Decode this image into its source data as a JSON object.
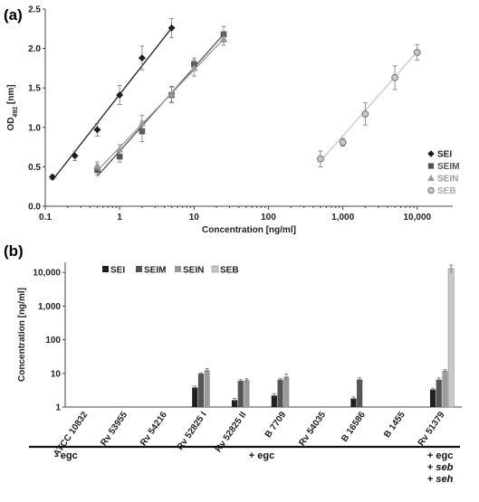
{
  "panel_labels": {
    "a": "(a)",
    "b": "(b)"
  },
  "colors": {
    "SEI": "#1f1f1f",
    "SEIM": "#555555",
    "SEIN": "#9a9a9a",
    "SEB": "#c8c8c8"
  },
  "chart_data": [
    {
      "type": "scatter",
      "panel": "(a)",
      "xlabel": "Concentration [ng/ml]",
      "ylabel_main": "OD",
      "ylabel_sub": "492",
      "ylabel_unit": " [nm]",
      "x_scale": "log",
      "xlim": [
        0.1,
        30000
      ],
      "ylim": [
        0,
        2.5
      ],
      "x_ticks": [
        0.1,
        1,
        10,
        100,
        1000,
        10000
      ],
      "x_tick_labels": [
        "0.1",
        "1",
        "10",
        "100",
        "1,000",
        "10,000"
      ],
      "y_ticks": [
        0.0,
        0.5,
        1.0,
        1.5,
        2.0,
        2.5
      ],
      "y_tick_labels": [
        "0.0",
        "0.5",
        "1.0",
        "1.5",
        "2.0",
        "2.5"
      ],
      "legend_position": "right",
      "series": [
        {
          "name": "SEI",
          "marker": "diamond",
          "x": [
            0.125,
            0.25,
            0.5,
            1,
            2,
            5
          ],
          "y": [
            0.37,
            0.64,
            0.97,
            1.41,
            1.88,
            2.26
          ],
          "err": [
            0.03,
            0.06,
            0.08,
            0.12,
            0.15,
            0.12
          ],
          "fit": [
            [
              0.125,
              0.33
            ],
            [
              5,
              2.26
            ]
          ]
        },
        {
          "name": "SEIM",
          "marker": "square",
          "x": [
            0.5,
            1,
            2,
            5,
            10,
            25
          ],
          "y": [
            0.46,
            0.63,
            0.95,
            1.41,
            1.8,
            2.18
          ],
          "err": [
            0.06,
            0.07,
            0.13,
            0.1,
            0.08,
            0.1
          ],
          "fit": [
            [
              0.5,
              0.38
            ],
            [
              25,
              2.18
            ]
          ]
        },
        {
          "name": "SEIN",
          "marker": "triangle",
          "x": [
            0.5,
            1,
            2,
            5,
            10,
            25
          ],
          "y": [
            0.51,
            0.72,
            1.05,
            1.42,
            1.75,
            2.12
          ],
          "err": [
            0.05,
            0.06,
            0.1,
            0.1,
            0.1,
            0.08
          ],
          "fit": [
            [
              0.5,
              0.45
            ],
            [
              25,
              2.12
            ]
          ]
        },
        {
          "name": "SEB",
          "marker": "circle",
          "x": [
            500,
            1000,
            2000,
            5000,
            10000
          ],
          "y": [
            0.6,
            0.81,
            1.17,
            1.63,
            1.95
          ],
          "err": [
            0.1,
            0.05,
            0.14,
            0.15,
            0.1
          ],
          "fit": [
            [
              500,
              0.57
            ],
            [
              10000,
              1.96
            ]
          ]
        }
      ]
    },
    {
      "type": "bar",
      "panel": "(b)",
      "ylabel": "Concentration [ng/ml]",
      "y_scale": "log",
      "ylim": [
        1,
        20000
      ],
      "y_ticks": [
        1,
        10,
        100,
        1000,
        10000
      ],
      "y_tick_labels": [
        "1",
        "10",
        "100",
        "1,000",
        "10,000"
      ],
      "legend_position": "top-left",
      "categories": [
        "ATCC 10832",
        "Rv 53955",
        "Rv 54216",
        "Rv 52825 I",
        "Rv 52825 II",
        "B 7709",
        "Rv 54035",
        "B 16586",
        "B 1455",
        "Rv 51379"
      ],
      "series": [
        {
          "name": "SEI",
          "values": [
            null,
            null,
            null,
            3.8,
            1.6,
            2.2,
            null,
            1.8,
            null,
            3.3
          ],
          "err": [
            null,
            null,
            null,
            0.4,
            0.2,
            0.3,
            null,
            0.2,
            null,
            0.3
          ]
        },
        {
          "name": "SEIM",
          "values": [
            null,
            null,
            null,
            9.8,
            6.0,
            6.5,
            null,
            6.6,
            null,
            6.5
          ],
          "err": [
            null,
            null,
            null,
            0.6,
            0.5,
            0.5,
            null,
            0.8,
            null,
            0.8
          ]
        },
        {
          "name": "SEIN",
          "values": [
            null,
            null,
            null,
            12.5,
            6.3,
            8.0,
            null,
            null,
            null,
            12.0
          ],
          "err": [
            null,
            null,
            null,
            1.5,
            0.6,
            1.5,
            null,
            null,
            null,
            1.0
          ]
        },
        {
          "name": "SEB",
          "values": [
            null,
            null,
            null,
            null,
            null,
            null,
            null,
            null,
            null,
            13000
          ],
          "err": [
            null,
            null,
            null,
            null,
            null,
            null,
            null,
            null,
            null,
            3500
          ]
        }
      ],
      "groups": [
        {
          "label_lines": [
            "- egc"
          ],
          "start": 0,
          "end": 0
        },
        {
          "label_lines": [
            "+ egc"
          ],
          "start": 1,
          "end": 8
        },
        {
          "label_lines": [
            "+ egc",
            "+ seb",
            "+ seh"
          ],
          "start": 9,
          "end": 9
        }
      ]
    }
  ]
}
